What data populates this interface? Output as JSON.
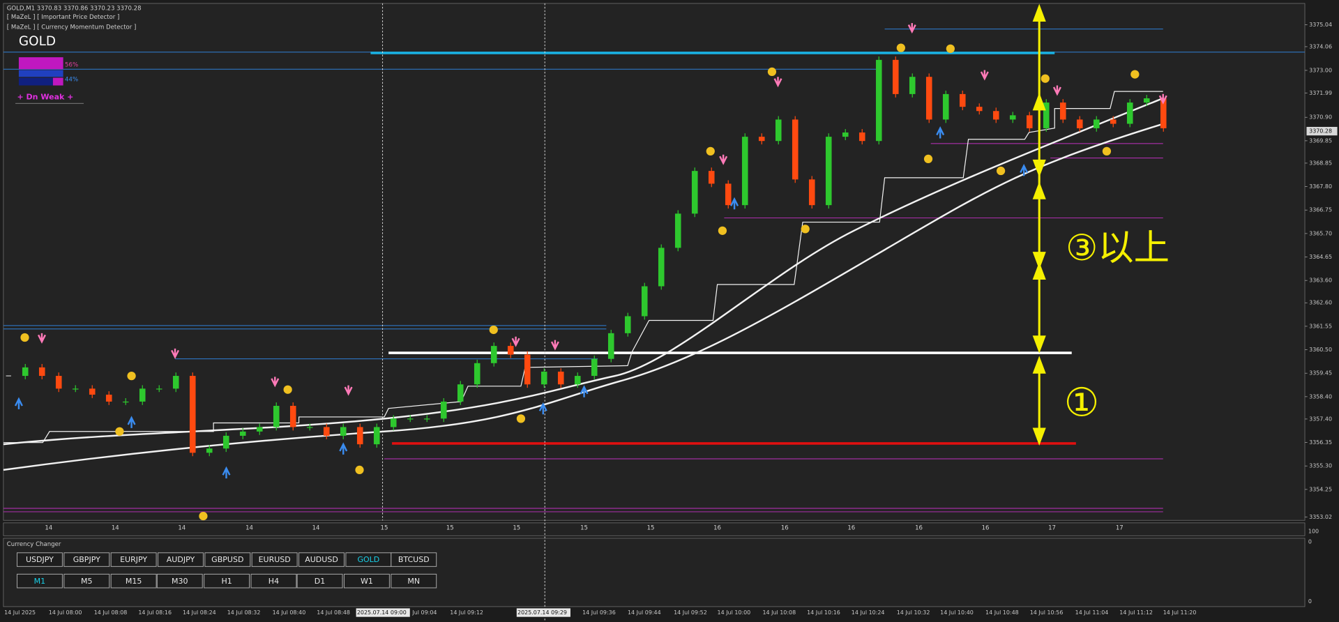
{
  "header": {
    "symbol_line": "GOLD,M1  3370.83 3370.86 3370.23 3370.28",
    "indicator_1": "[ MaZeL ] [ Important Price Detector ]",
    "indicator_2": "[ MaZeL ] [ Currency Momentum Detector ]"
  },
  "momentum": {
    "symbol": "GOLD",
    "strong_pct": "56%",
    "weak_pct": "44%",
    "status": "+  Dn Weak  +"
  },
  "annotations": {
    "range_3": "③以上",
    "range_1": "①"
  },
  "price_axis": {
    "ticks": [
      3375.04,
      3374.06,
      {
        "value": 3373,
        "label": "3373.00"
      },
      3371.99,
      {
        "value": 3370.9,
        "label": "3370.90"
      },
      3369.85,
      3368.85,
      {
        "value": 3367.8,
        "label": "3367.80"
      },
      3366.75,
      {
        "value": 3365.7,
        "label": "3365.70"
      },
      3364.65,
      {
        "value": 3363.6,
        "label": "3363.60"
      },
      {
        "value": 3362.6,
        "label": "3362.60"
      },
      3361.55,
      {
        "value": 3360.5,
        "label": "3360.50"
      },
      3359.45,
      {
        "value": 3358.4,
        "label": "3358.40"
      },
      {
        "value": 3357.4,
        "label": "3357.40"
      },
      3356.35,
      {
        "value": 3355.3,
        "label": "3355.30"
      },
      3354.25,
      3353.02
    ],
    "current": 3370.28
  },
  "candles": {
    "close": [
      3359.33,
      3359.71,
      3359.33,
      3358.76,
      3358.76,
      3358.49,
      3358.18,
      3358.18,
      3358.76,
      3358.76,
      3359.33,
      3355.89,
      3356.08,
      3356.65,
      3356.84,
      3357.04,
      3357.99,
      3357.04,
      3357.04,
      3356.65,
      3357.04,
      3356.27,
      3357.04,
      3357.42,
      3357.42,
      3357.42,
      3358.18,
      3358.95,
      3359.9,
      3360.67,
      3360.28,
      3358.95,
      3359.52,
      3358.95,
      3359.33,
      3360.09,
      3361.24,
      3362,
      3363.34,
      3365.06,
      3366.59,
      3368.5,
      3367.93,
      3366.97,
      3370.03,
      3369.84,
      3370.8,
      3368.12,
      3366.97,
      3370.03,
      3370.22,
      3369.84,
      3373.47,
      3371.94,
      3372.71,
      3370.8,
      3371.94,
      3371.37,
      3371.18,
      3370.8,
      3370.99,
      3370.41,
      3371.56,
      3370.8,
      3370.41,
      3370.8,
      3370.61,
      3371.56,
      3371.75,
      3370.41
    ]
  },
  "day_labels": [
    "14",
    "14",
    "14",
    "14",
    "14",
    "15",
    "15",
    "15",
    "15",
    "15",
    "16",
    "16",
    "16",
    "16",
    "16",
    "17",
    "17"
  ],
  "time_axis": [
    {
      "label": "14 Jul 2025"
    },
    {
      "label": "14 Jul 08:00"
    },
    {
      "label": "14 Jul 08:08"
    },
    {
      "label": "14 Jul 08:16"
    },
    {
      "label": "14 Jul 08:24"
    },
    {
      "label": "14 Jul 08:32"
    },
    {
      "label": "14 Jul 08:40"
    },
    {
      "label": "14 Jul 08:48"
    },
    {
      "label": "2025.07.14 09:00",
      "highlight": true
    },
    {
      "label": "Jul 09:04"
    },
    {
      "label": "14 Jul 09:12"
    },
    {
      "label": "2025.07.14 09:29",
      "highlight": true
    },
    {
      "label": "14 Jul 09:36"
    },
    {
      "label": "14 Jul 09:44"
    },
    {
      "label": "14 Jul 09:52"
    },
    {
      "label": "14 Jul 10:00"
    },
    {
      "label": "14 Jul 10:08"
    },
    {
      "label": "14 Jul 10:16"
    },
    {
      "label": "14 Jul 10:24"
    },
    {
      "label": "14 Jul 10:32"
    },
    {
      "label": "14 Jul 10:40"
    },
    {
      "label": "14 Jul 10:48"
    },
    {
      "label": "14 Jul 10:56"
    },
    {
      "label": "14 Jul 11:04"
    },
    {
      "label": "14 Jul 11:12"
    },
    {
      "label": "14 Jul 11:20"
    }
  ],
  "subwindow": {
    "title": "Currency Changer",
    "scale_labels": [
      "100",
      "0",
      "0"
    ]
  },
  "symbols": [
    {
      "label": "USDJPY"
    },
    {
      "label": "GBPJPY"
    },
    {
      "label": "EURJPY"
    },
    {
      "label": "AUDJPY"
    },
    {
      "label": "GBPUSD"
    },
    {
      "label": "EURUSD"
    },
    {
      "label": "AUDUSD"
    },
    {
      "label": "GOLD",
      "active": true
    },
    {
      "label": "BTCUSD"
    }
  ],
  "timeframes": [
    {
      "label": "M1",
      "active": true
    },
    {
      "label": "M5"
    },
    {
      "label": "M15"
    },
    {
      "label": "M30"
    },
    {
      "label": "H1"
    },
    {
      "label": "H4"
    },
    {
      "label": "D1"
    },
    {
      "label": "W1"
    },
    {
      "label": "MN"
    }
  ]
}
